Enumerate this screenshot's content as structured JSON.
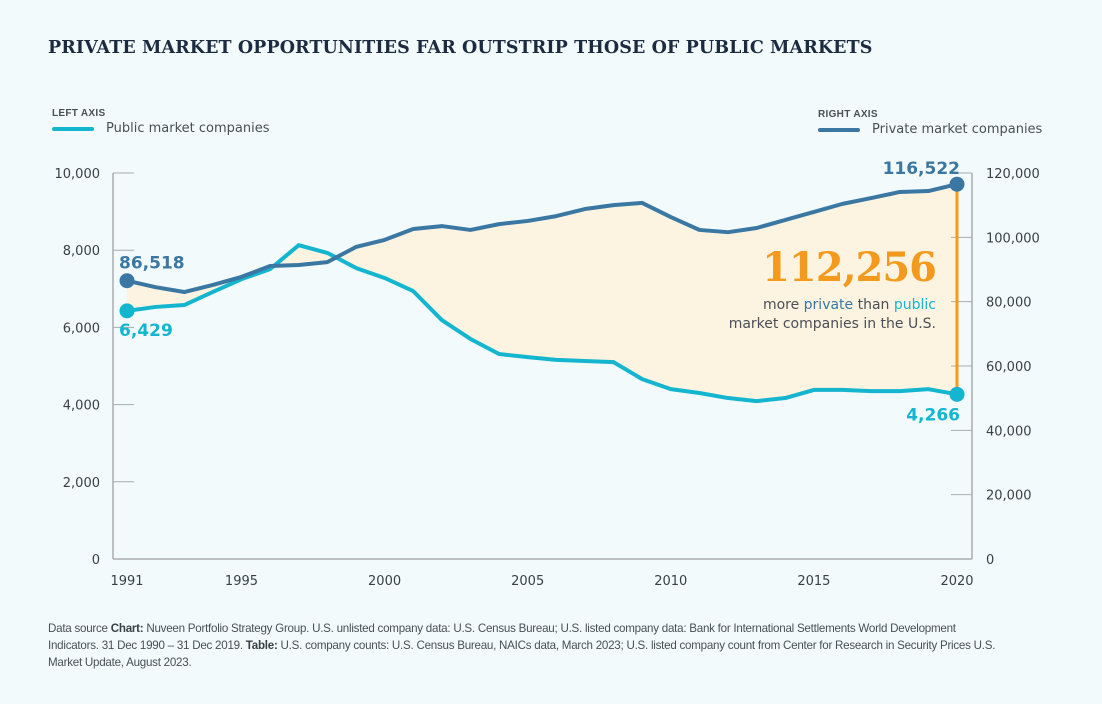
{
  "title": "PRIVATE MARKET OPPORTUNITIES FAR OUTSTRIP THOSE OF PUBLIC MARKETS",
  "legend": {
    "left": {
      "axis_label": "LEFT AXIS",
      "series_name": "Public market companies",
      "color": "#14b5cf"
    },
    "right": {
      "axis_label": "RIGHT AXIS",
      "series_name": "Private market companies",
      "color": "#3a78a3"
    }
  },
  "annotation": {
    "number": "112,256",
    "line1_prefix": "more ",
    "line1_private": "private",
    "line1_mid": " than ",
    "line1_public": "public",
    "line2": "market companies in the U.S.",
    "color": "#f39a1d"
  },
  "footer": {
    "p1": "Data source ",
    "b1": "Chart:",
    "p2": " Nuveen Portfolio Strategy Group. U.S. unlisted company data: U.S. Census Bureau; U.S. listed company data: Bank for International Settlements World Development Indicators. 31 Dec 1990 – 31 Dec 2019. ",
    "b2": "Table:",
    "p3": " U.S. company counts: U.S. Census Bureau, NAICs data, March 2023; U.S. listed company count from Center for Research in Security Prices U.S. Market Update, August 2023."
  },
  "chart_data": {
    "type": "line",
    "title": "PRIVATE MARKET OPPORTUNITIES FAR OUTSTRIP THOSE OF PUBLIC MARKETS",
    "x": [
      1991,
      1992,
      1993,
      1994,
      1995,
      1996,
      1997,
      1998,
      1999,
      2000,
      2001,
      2002,
      2003,
      2004,
      2005,
      2006,
      2007,
      2008,
      2009,
      2010,
      2011,
      2012,
      2013,
      2014,
      2015,
      2016,
      2017,
      2018,
      2019,
      2020
    ],
    "x_ticks": [
      "1991",
      "1995",
      "2000",
      "2005",
      "2010",
      "2015",
      "2020"
    ],
    "x_tick_values": [
      1991,
      1995,
      2000,
      2005,
      2010,
      2015,
      2020
    ],
    "xlim": [
      1991,
      2020
    ],
    "left_axis": {
      "label": "Public market companies",
      "ylim": [
        0,
        10000
      ],
      "ticks": [
        0,
        2000,
        4000,
        6000,
        8000,
        10000
      ],
      "tick_labels": [
        "0",
        "2,000",
        "4,000",
        "6,000",
        "8,000",
        "10,000"
      ]
    },
    "right_axis": {
      "label": "Private market companies",
      "ylim": [
        0,
        120000
      ],
      "ticks": [
        0,
        20000,
        40000,
        60000,
        80000,
        100000,
        120000
      ],
      "tick_labels": [
        "0",
        "20,000",
        "40,000",
        "60,000",
        "80,000",
        "100,000",
        "120,000"
      ]
    },
    "series": [
      {
        "name": "Public market companies",
        "axis": "left",
        "color": "#14b5cf",
        "values": [
          6429,
          6530,
          6580,
          6920,
          7250,
          7510,
          8130,
          7930,
          7540,
          7280,
          6940,
          6190,
          5700,
          5310,
          5230,
          5160,
          5130,
          5100,
          4660,
          4400,
          4300,
          4170,
          4090,
          4170,
          4380,
          4380,
          4350,
          4350,
          4400,
          4266
        ]
      },
      {
        "name": "Private market companies",
        "axis": "right",
        "color": "#3a78a3",
        "values": [
          86518,
          84500,
          83000,
          85200,
          87700,
          91100,
          91400,
          92300,
          97000,
          99200,
          102600,
          103500,
          102300,
          104100,
          105100,
          106600,
          108800,
          110000,
          110700,
          106300,
          102300,
          101600,
          102900,
          105400,
          107900,
          110400,
          112200,
          114100,
          114400,
          116522
        ]
      }
    ],
    "data_labels": [
      {
        "series": "Private market companies",
        "x": 1991,
        "text": "86,518"
      },
      {
        "series": "Public market companies",
        "x": 1991,
        "text": "6,429"
      },
      {
        "series": "Private market companies",
        "x": 2020,
        "text": "116,522"
      },
      {
        "series": "Public market companies",
        "x": 2020,
        "text": "4,266"
      }
    ],
    "gap_fill_color": "#fdf3e1",
    "annotation": "112,256 more private than public market companies in the U.S.",
    "grid": false,
    "legend_position": "top"
  }
}
